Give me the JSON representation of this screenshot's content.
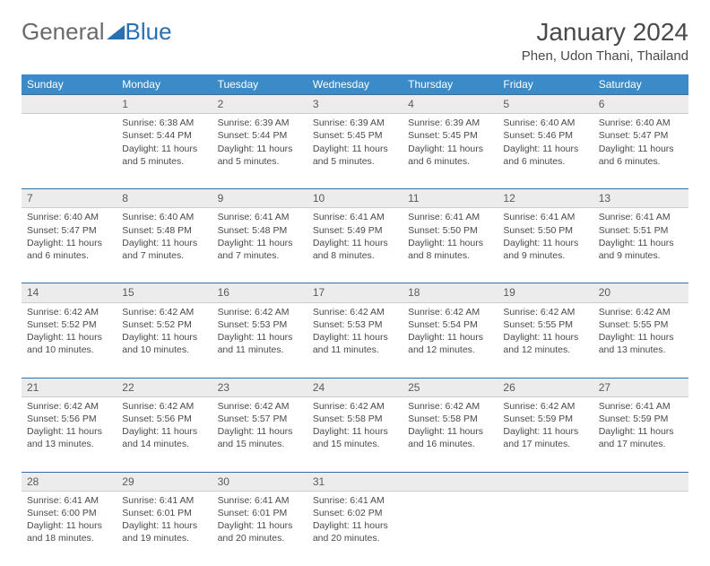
{
  "logo": {
    "text1": "General",
    "text2": "Blue",
    "color1": "#6a6a6a",
    "color2": "#2a6fb0"
  },
  "title": "January 2024",
  "location": "Phen, Udon Thani, Thailand",
  "dayHeaders": [
    "Sunday",
    "Monday",
    "Tuesday",
    "Wednesday",
    "Thursday",
    "Friday",
    "Saturday"
  ],
  "header_bg": "#3b8bc9",
  "daynum_bg": "#ececec",
  "rule_color": "#3b6fa0",
  "startOffset": 1,
  "days": [
    {
      "n": 1,
      "sunrise": "6:38 AM",
      "sunset": "5:44 PM",
      "daylight": "11 hours and 5 minutes."
    },
    {
      "n": 2,
      "sunrise": "6:39 AM",
      "sunset": "5:44 PM",
      "daylight": "11 hours and 5 minutes."
    },
    {
      "n": 3,
      "sunrise": "6:39 AM",
      "sunset": "5:45 PM",
      "daylight": "11 hours and 5 minutes."
    },
    {
      "n": 4,
      "sunrise": "6:39 AM",
      "sunset": "5:45 PM",
      "daylight": "11 hours and 6 minutes."
    },
    {
      "n": 5,
      "sunrise": "6:40 AM",
      "sunset": "5:46 PM",
      "daylight": "11 hours and 6 minutes."
    },
    {
      "n": 6,
      "sunrise": "6:40 AM",
      "sunset": "5:47 PM",
      "daylight": "11 hours and 6 minutes."
    },
    {
      "n": 7,
      "sunrise": "6:40 AM",
      "sunset": "5:47 PM",
      "daylight": "11 hours and 6 minutes."
    },
    {
      "n": 8,
      "sunrise": "6:40 AM",
      "sunset": "5:48 PM",
      "daylight": "11 hours and 7 minutes."
    },
    {
      "n": 9,
      "sunrise": "6:41 AM",
      "sunset": "5:48 PM",
      "daylight": "11 hours and 7 minutes."
    },
    {
      "n": 10,
      "sunrise": "6:41 AM",
      "sunset": "5:49 PM",
      "daylight": "11 hours and 8 minutes."
    },
    {
      "n": 11,
      "sunrise": "6:41 AM",
      "sunset": "5:50 PM",
      "daylight": "11 hours and 8 minutes."
    },
    {
      "n": 12,
      "sunrise": "6:41 AM",
      "sunset": "5:50 PM",
      "daylight": "11 hours and 9 minutes."
    },
    {
      "n": 13,
      "sunrise": "6:41 AM",
      "sunset": "5:51 PM",
      "daylight": "11 hours and 9 minutes."
    },
    {
      "n": 14,
      "sunrise": "6:42 AM",
      "sunset": "5:52 PM",
      "daylight": "11 hours and 10 minutes."
    },
    {
      "n": 15,
      "sunrise": "6:42 AM",
      "sunset": "5:52 PM",
      "daylight": "11 hours and 10 minutes."
    },
    {
      "n": 16,
      "sunrise": "6:42 AM",
      "sunset": "5:53 PM",
      "daylight": "11 hours and 11 minutes."
    },
    {
      "n": 17,
      "sunrise": "6:42 AM",
      "sunset": "5:53 PM",
      "daylight": "11 hours and 11 minutes."
    },
    {
      "n": 18,
      "sunrise": "6:42 AM",
      "sunset": "5:54 PM",
      "daylight": "11 hours and 12 minutes."
    },
    {
      "n": 19,
      "sunrise": "6:42 AM",
      "sunset": "5:55 PM",
      "daylight": "11 hours and 12 minutes."
    },
    {
      "n": 20,
      "sunrise": "6:42 AM",
      "sunset": "5:55 PM",
      "daylight": "11 hours and 13 minutes."
    },
    {
      "n": 21,
      "sunrise": "6:42 AM",
      "sunset": "5:56 PM",
      "daylight": "11 hours and 13 minutes."
    },
    {
      "n": 22,
      "sunrise": "6:42 AM",
      "sunset": "5:56 PM",
      "daylight": "11 hours and 14 minutes."
    },
    {
      "n": 23,
      "sunrise": "6:42 AM",
      "sunset": "5:57 PM",
      "daylight": "11 hours and 15 minutes."
    },
    {
      "n": 24,
      "sunrise": "6:42 AM",
      "sunset": "5:58 PM",
      "daylight": "11 hours and 15 minutes."
    },
    {
      "n": 25,
      "sunrise": "6:42 AM",
      "sunset": "5:58 PM",
      "daylight": "11 hours and 16 minutes."
    },
    {
      "n": 26,
      "sunrise": "6:42 AM",
      "sunset": "5:59 PM",
      "daylight": "11 hours and 17 minutes."
    },
    {
      "n": 27,
      "sunrise": "6:41 AM",
      "sunset": "5:59 PM",
      "daylight": "11 hours and 17 minutes."
    },
    {
      "n": 28,
      "sunrise": "6:41 AM",
      "sunset": "6:00 PM",
      "daylight": "11 hours and 18 minutes."
    },
    {
      "n": 29,
      "sunrise": "6:41 AM",
      "sunset": "6:01 PM",
      "daylight": "11 hours and 19 minutes."
    },
    {
      "n": 30,
      "sunrise": "6:41 AM",
      "sunset": "6:01 PM",
      "daylight": "11 hours and 20 minutes."
    },
    {
      "n": 31,
      "sunrise": "6:41 AM",
      "sunset": "6:02 PM",
      "daylight": "11 hours and 20 minutes."
    }
  ],
  "labels": {
    "sunrise": "Sunrise: ",
    "sunset": "Sunset: ",
    "daylight": "Daylight: "
  }
}
